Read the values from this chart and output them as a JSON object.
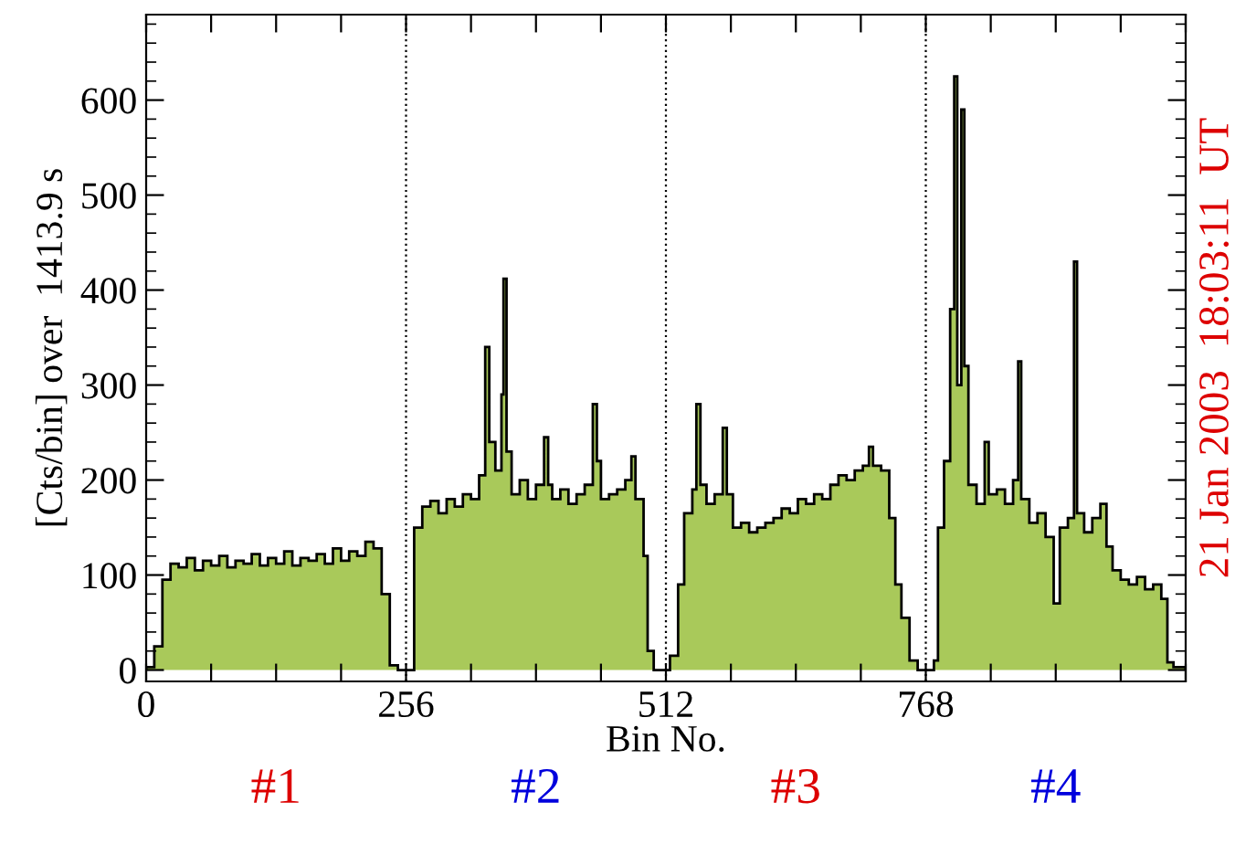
{
  "chart_data": {
    "type": "histogram",
    "xlabel": "Bin No.",
    "ylabel": "[Cts/bin] over  1413.9 s",
    "bins": [
      0,
      8,
      16,
      24,
      32,
      40,
      48,
      56,
      64,
      72,
      80,
      88,
      96,
      104,
      112,
      120,
      128,
      136,
      144,
      152,
      160,
      168,
      176,
      184,
      192,
      200,
      208,
      216,
      224,
      232,
      240,
      248,
      264,
      272,
      280,
      288,
      296,
      304,
      312,
      320,
      328,
      334,
      338,
      344,
      350,
      352,
      355,
      360,
      368,
      376,
      384,
      392,
      396,
      400,
      408,
      416,
      424,
      432,
      440,
      444,
      448,
      456,
      464,
      472,
      478,
      482,
      490,
      494,
      500,
      516,
      524,
      530,
      538,
      542,
      546,
      552,
      560,
      568,
      572,
      578,
      586,
      594,
      602,
      610,
      618,
      626,
      634,
      642,
      650,
      658,
      666,
      674,
      682,
      690,
      698,
      706,
      712,
      716,
      724,
      732,
      738,
      744,
      752,
      760,
      776,
      780,
      786,
      792,
      796,
      799,
      803,
      806,
      810,
      818,
      826,
      830,
      838,
      846,
      854,
      859,
      862,
      870,
      878,
      886,
      894,
      900,
      908,
      914,
      917,
      924,
      932,
      940,
      946,
      952,
      960,
      968,
      976,
      984,
      992,
      1000,
      1006,
      1012,
      1024
    ],
    "values": [
      3,
      25,
      95,
      112,
      108,
      118,
      105,
      115,
      110,
      120,
      108,
      115,
      112,
      122,
      110,
      118,
      112,
      125,
      110,
      118,
      115,
      122,
      112,
      128,
      115,
      125,
      120,
      135,
      128,
      80,
      5,
      0,
      150,
      172,
      178,
      165,
      180,
      172,
      185,
      180,
      205,
      340,
      240,
      210,
      290,
      412,
      230,
      185,
      200,
      180,
      195,
      245,
      195,
      180,
      190,
      175,
      185,
      195,
      280,
      220,
      180,
      185,
      190,
      200,
      225,
      180,
      120,
      20,
      0,
      15,
      90,
      165,
      190,
      280,
      195,
      175,
      185,
      255,
      185,
      150,
      155,
      145,
      150,
      155,
      160,
      170,
      165,
      180,
      175,
      185,
      180,
      195,
      205,
      200,
      210,
      215,
      235,
      215,
      210,
      160,
      90,
      55,
      10,
      0,
      10,
      150,
      220,
      380,
      625,
      300,
      590,
      320,
      195,
      175,
      240,
      185,
      190,
      175,
      200,
      325,
      180,
      155,
      165,
      140,
      70,
      150,
      160,
      430,
      165,
      145,
      160,
      175,
      130,
      105,
      95,
      90,
      98,
      85,
      90,
      75,
      8,
      3
    ],
    "color": "#a9c95a",
    "xlim": [
      0,
      1024
    ],
    "ylim": [
      -12,
      690
    ],
    "xticks": [
      0,
      {
        "value": 64,
        "label": null
      },
      {
        "value": 128,
        "label": null
      },
      {
        "value": 192,
        "label": null
      },
      256,
      {
        "value": 320,
        "label": null
      },
      {
        "value": 384,
        "label": null
      },
      {
        "value": 448,
        "label": null
      },
      512,
      {
        "value": 576,
        "label": null
      },
      {
        "value": 640,
        "label": null
      },
      {
        "value": 704,
        "label": null
      },
      768,
      {
        "value": 832,
        "label": null
      },
      {
        "value": 896,
        "label": null
      },
      {
        "value": 960,
        "label": null
      },
      {
        "value": 1024,
        "label": null
      }
    ],
    "yticks": [
      0,
      100,
      200,
      300,
      400,
      500,
      600
    ],
    "ref_lines": [
      {
        "axis": "x",
        "value": 256,
        "line_style": "dotted",
        "color": "#000000"
      },
      {
        "axis": "x",
        "value": 512,
        "line_style": "dotted",
        "color": "#000000"
      },
      {
        "axis": "x",
        "value": 768,
        "line_style": "dotted",
        "color": "#000000"
      }
    ],
    "annotations": [
      "21 Jan 2003  18:03:11  UT",
      "#1",
      "#2",
      "#3",
      "#4"
    ],
    "grid": false,
    "legend": false
  }
}
